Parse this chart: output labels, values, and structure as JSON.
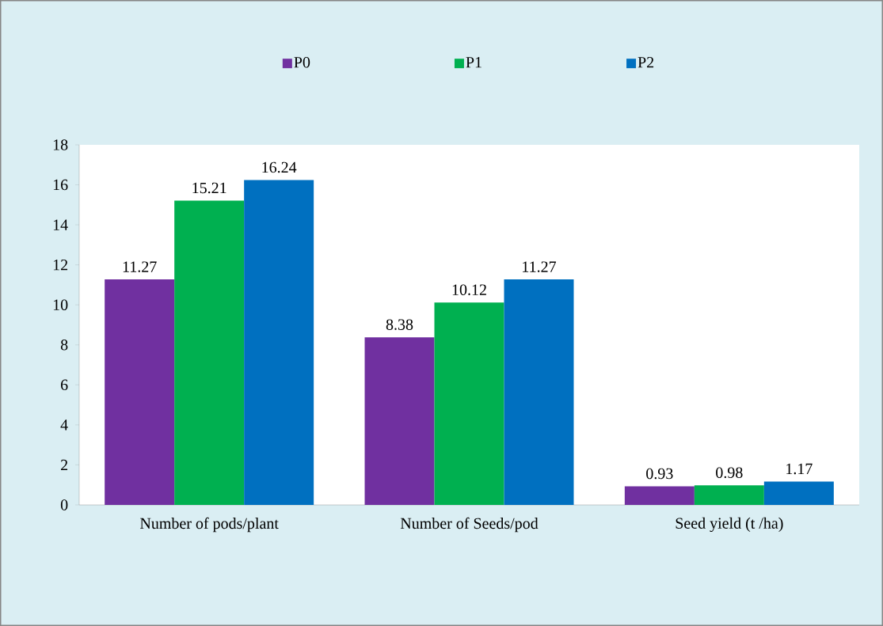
{
  "chart_data": {
    "type": "bar",
    "categories": [
      "Number of pods/plant",
      "Number of Seeds/pod",
      "Seed yield (t /ha)"
    ],
    "series": [
      {
        "name": "P0",
        "color": "#7030a0",
        "values": [
          11.27,
          8.38,
          0.93
        ]
      },
      {
        "name": "P1",
        "color": "#00b050",
        "values": [
          15.21,
          10.12,
          0.98
        ]
      },
      {
        "name": "P2",
        "color": "#0070c0",
        "values": [
          16.24,
          11.27,
          1.17
        ]
      }
    ],
    "ylim": [
      0,
      18
    ],
    "yticks": [
      0,
      2,
      4,
      6,
      8,
      10,
      12,
      14,
      16,
      18
    ],
    "data_labels": true,
    "legend": "top",
    "grid": false
  }
}
